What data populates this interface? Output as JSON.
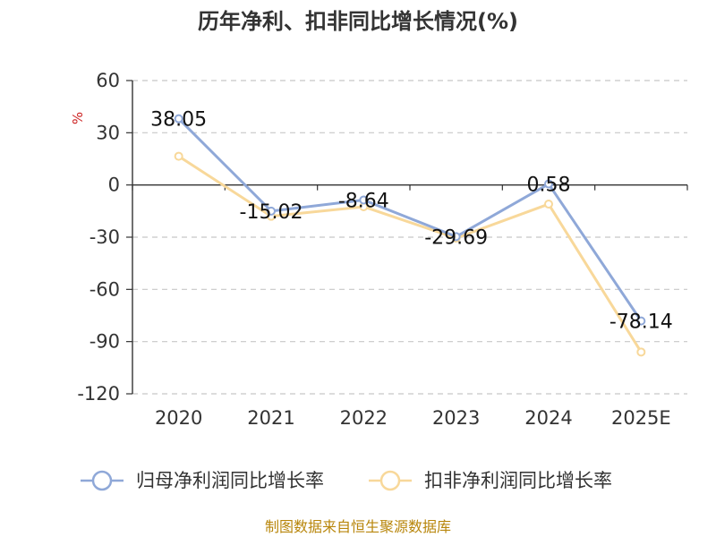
{
  "chart_data": {
    "type": "line",
    "title": "历年净利、扣非同比增长情况(%)",
    "ylabel": "%",
    "xlabel": "",
    "categories": [
      "2020",
      "2021",
      "2022",
      "2023",
      "2024",
      "2025E"
    ],
    "ylim": [
      -120,
      60
    ],
    "yticks": [
      60,
      30,
      0,
      -30,
      -60,
      -90,
      -120
    ],
    "grid": true,
    "legend_position": "bottom",
    "series": [
      {
        "name": "归母净利润同比增长率",
        "color": "#8fa8d8",
        "values": [
          38.05,
          -15.02,
          -8.64,
          -29.69,
          0.58,
          -78.14
        ],
        "labels": [
          "38.05",
          "-15.02",
          "-8.64",
          "-29.69",
          "0.58",
          "-78.14"
        ]
      },
      {
        "name": "扣非净利润同比增长率",
        "color": "#f8d89a",
        "values": [
          16.5,
          -18.0,
          -12.5,
          -30.5,
          -11.0,
          -96.0
        ]
      }
    ],
    "source": "制图数据来自恒生聚源数据库"
  }
}
